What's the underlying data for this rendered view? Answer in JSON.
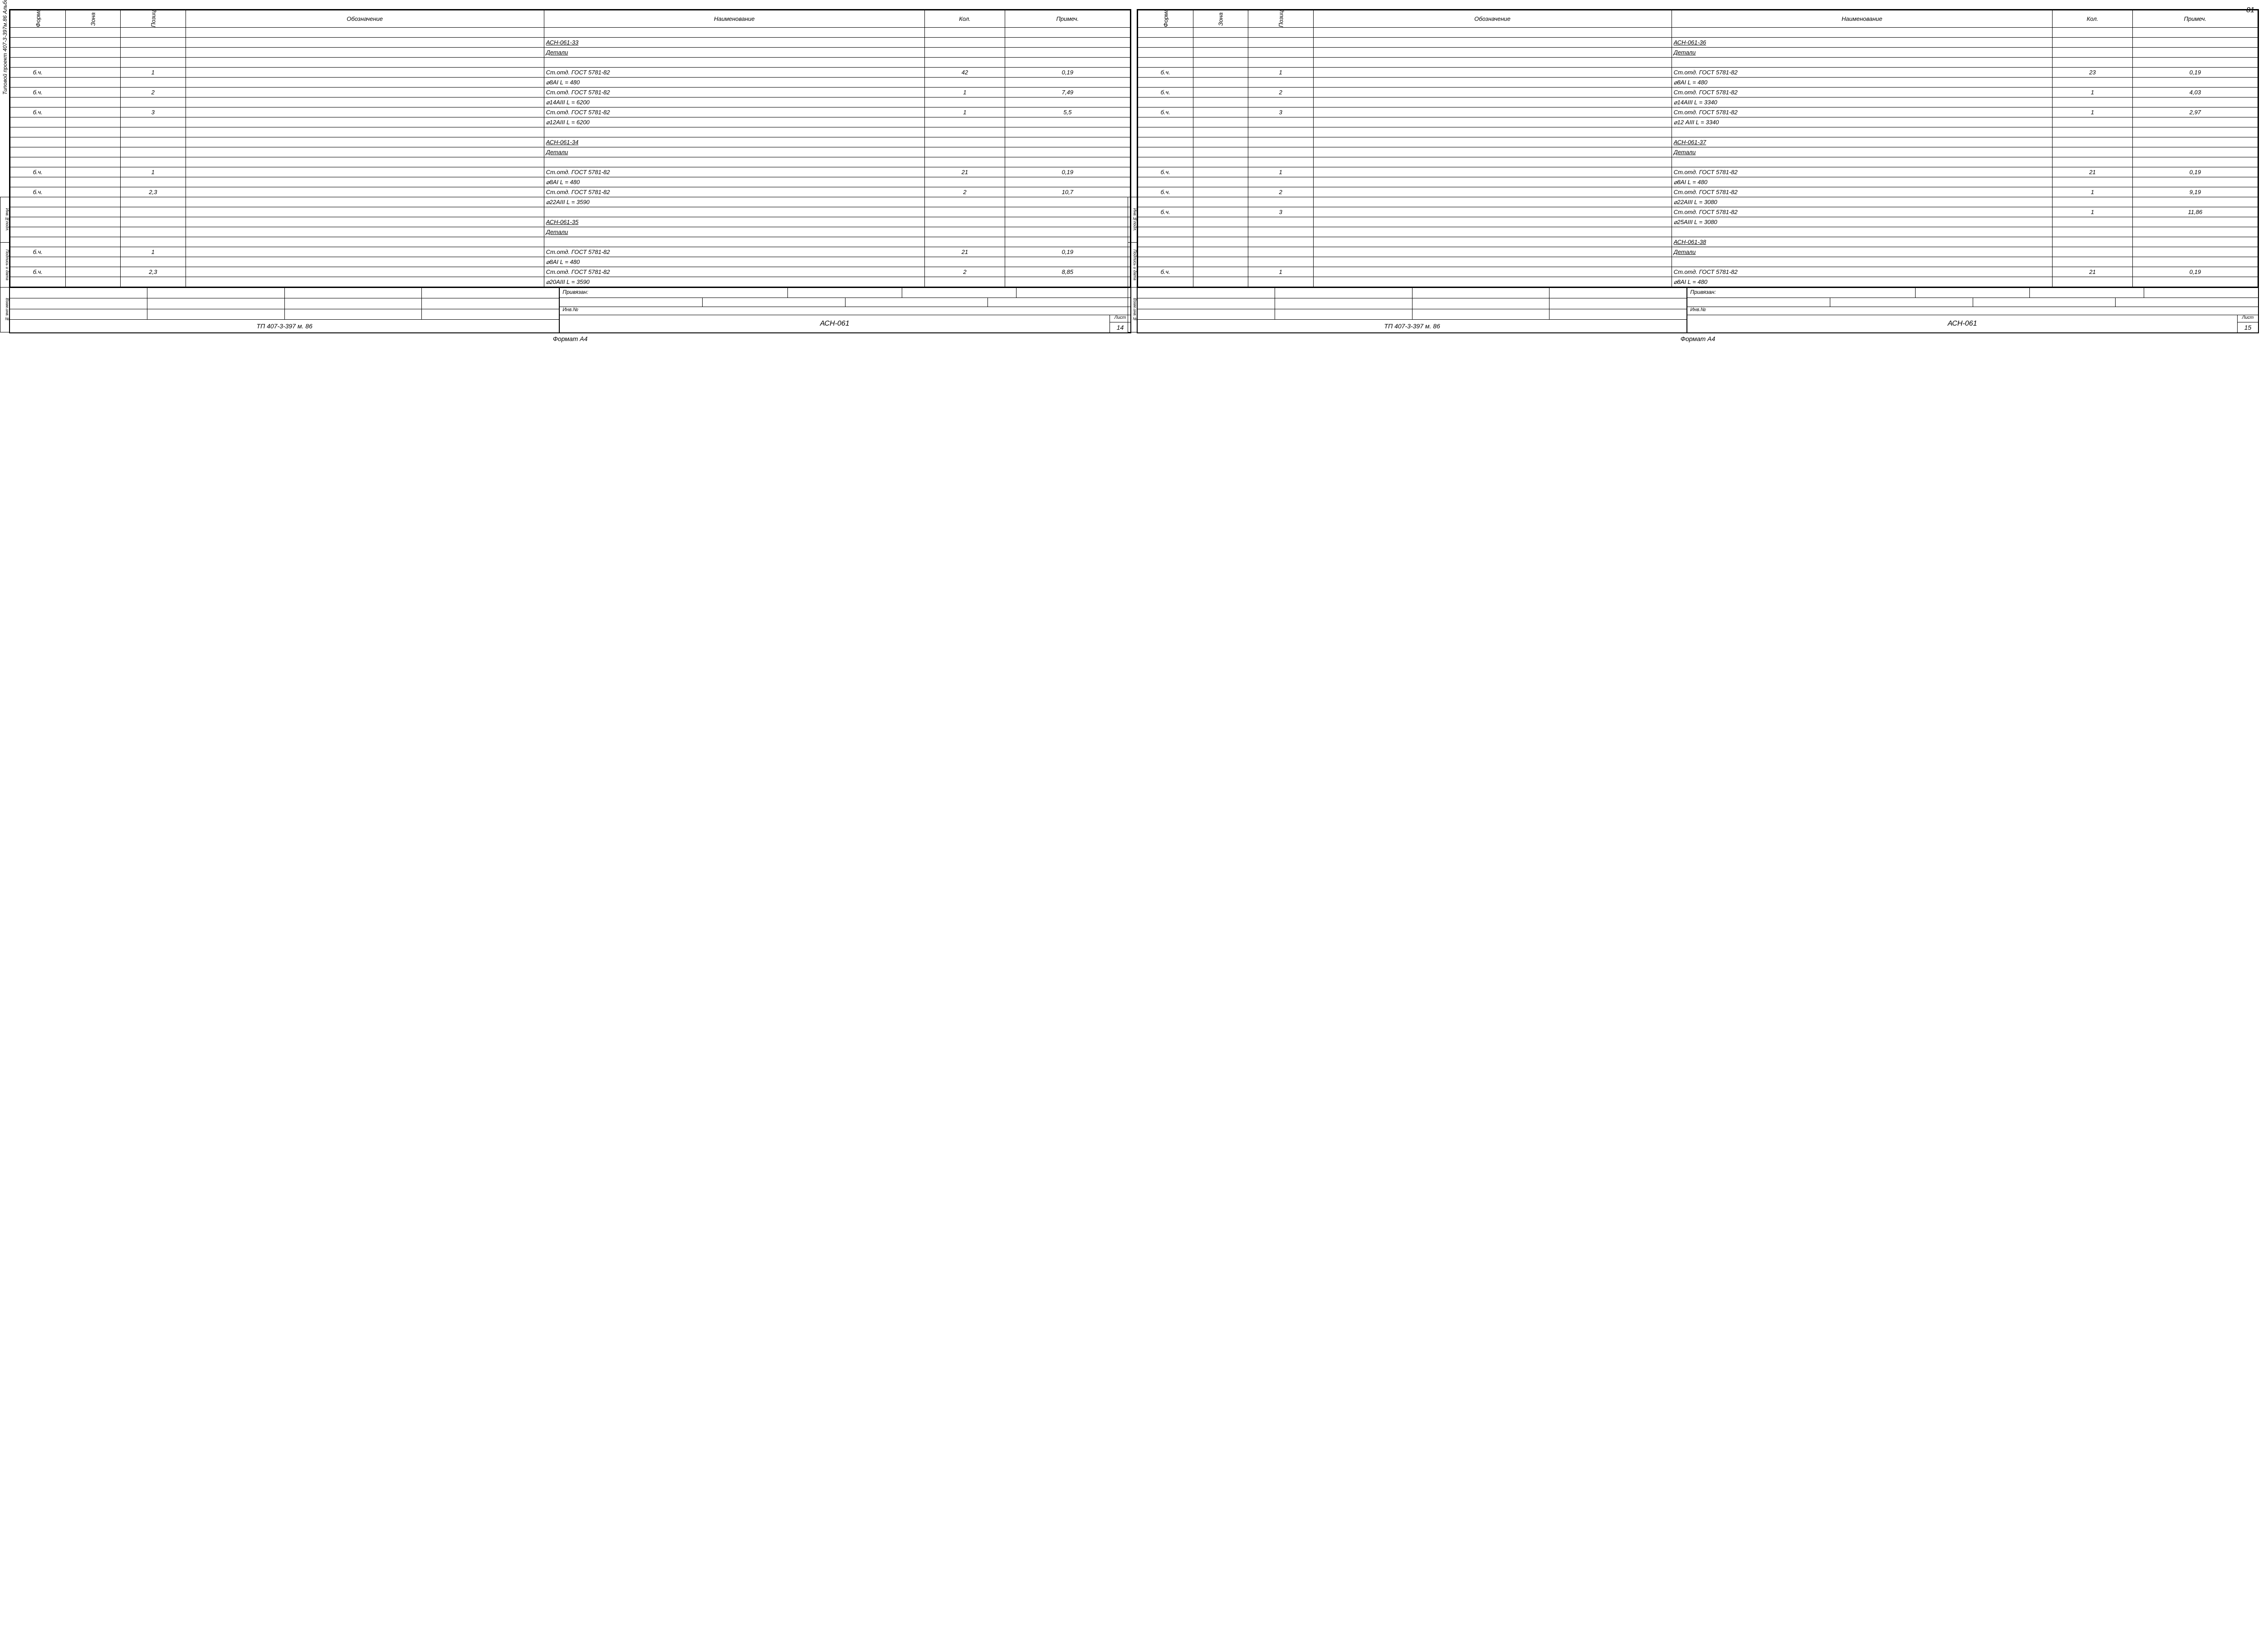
{
  "page_number": "81",
  "side_text_left": "Типовой проект 407-3-397м.86 Альбом IV №10272 тм-III-82",
  "side_labels": [
    "Инв.№подл.",
    "Подпись и дата",
    "Взам.инв.№"
  ],
  "columns": {
    "format": "Формат",
    "zone": "Зона",
    "pos": "Позиция",
    "designation": "Обозначение",
    "name": "Наименование",
    "qty": "Кол.",
    "note": "Примеч."
  },
  "title_block": {
    "privyazan": "Привязан:",
    "inv": "Инв.№",
    "project": "ТП  407-3-397 м. 86",
    "doc_code": "АСН-061",
    "list_label": "Лист"
  },
  "format_footer": "Формат А4",
  "sheets": [
    {
      "sheet_no": "14",
      "rows": [
        {
          "f": "",
          "z": "",
          "p": "",
          "d": "",
          "n": "",
          "q": "",
          "note": ""
        },
        {
          "f": "",
          "z": "",
          "p": "",
          "d": "",
          "n": "АСН-061-33",
          "q": "",
          "note": "",
          "u": true
        },
        {
          "f": "",
          "z": "",
          "p": "",
          "d": "",
          "n": "Детали",
          "q": "",
          "note": "",
          "u": true
        },
        {
          "f": "",
          "z": "",
          "p": "",
          "d": "",
          "n": "",
          "q": "",
          "note": ""
        },
        {
          "f": "б.ч.",
          "z": "",
          "p": "1",
          "d": "",
          "n": "Ст.отд. ГОСТ 5781-82",
          "q": "42",
          "note": "0,19"
        },
        {
          "f": "",
          "z": "",
          "p": "",
          "d": "",
          "n": "⌀8АI  L = 480",
          "q": "",
          "note": ""
        },
        {
          "f": "б.ч.",
          "z": "",
          "p": "2",
          "d": "",
          "n": "Ст.отд. ГОСТ 5781-82",
          "q": "1",
          "note": "7,49"
        },
        {
          "f": "",
          "z": "",
          "p": "",
          "d": "",
          "n": "⌀14АIII  L = 6200",
          "q": "",
          "note": ""
        },
        {
          "f": "б.ч.",
          "z": "",
          "p": "3",
          "d": "",
          "n": "Ст.отд. ГОСТ 5781-82",
          "q": "1",
          "note": "5,5"
        },
        {
          "f": "",
          "z": "",
          "p": "",
          "d": "",
          "n": "⌀12АIII  L = 6200",
          "q": "",
          "note": ""
        },
        {
          "f": "",
          "z": "",
          "p": "",
          "d": "",
          "n": "",
          "q": "",
          "note": ""
        },
        {
          "f": "",
          "z": "",
          "p": "",
          "d": "",
          "n": "АСН-061-34",
          "q": "",
          "note": "",
          "u": true
        },
        {
          "f": "",
          "z": "",
          "p": "",
          "d": "",
          "n": "Детали",
          "q": "",
          "note": "",
          "u": true
        },
        {
          "f": "",
          "z": "",
          "p": "",
          "d": "",
          "n": "",
          "q": "",
          "note": ""
        },
        {
          "f": "б.ч.",
          "z": "",
          "p": "1",
          "d": "",
          "n": "Ст.отд. ГОСТ 5781-82",
          "q": "21",
          "note": "0,19"
        },
        {
          "f": "",
          "z": "",
          "p": "",
          "d": "",
          "n": "⌀8АI  L = 480",
          "q": "",
          "note": ""
        },
        {
          "f": "б.ч.",
          "z": "",
          "p": "2,3",
          "d": "",
          "n": "Ст.отд. ГОСТ 5781-82",
          "q": "2",
          "note": "10,7"
        },
        {
          "f": "",
          "z": "",
          "p": "",
          "d": "",
          "n": "⌀22АIII  L = 3590",
          "q": "",
          "note": ""
        },
        {
          "f": "",
          "z": "",
          "p": "",
          "d": "",
          "n": "",
          "q": "",
          "note": ""
        },
        {
          "f": "",
          "z": "",
          "p": "",
          "d": "",
          "n": "АСН-061-35",
          "q": "",
          "note": "",
          "u": true
        },
        {
          "f": "",
          "z": "",
          "p": "",
          "d": "",
          "n": "Детали",
          "q": "",
          "note": "",
          "u": true
        },
        {
          "f": "",
          "z": "",
          "p": "",
          "d": "",
          "n": "",
          "q": "",
          "note": ""
        },
        {
          "f": "б.ч.",
          "z": "",
          "p": "1",
          "d": "",
          "n": "Ст.отд. ГОСТ 5781-82",
          "q": "21",
          "note": "0,19"
        },
        {
          "f": "",
          "z": "",
          "p": "",
          "d": "",
          "n": "⌀8АI  L = 480",
          "q": "",
          "note": ""
        },
        {
          "f": "б.ч.",
          "z": "",
          "p": "2,3",
          "d": "",
          "n": "Ст.отд. ГОСТ 5781-82",
          "q": "2",
          "note": "8,85"
        },
        {
          "f": "",
          "z": "",
          "p": "",
          "d": "",
          "n": "⌀20АIII  L = 3590",
          "q": "",
          "note": ""
        }
      ]
    },
    {
      "sheet_no": "15",
      "rows": [
        {
          "f": "",
          "z": "",
          "p": "",
          "d": "",
          "n": "",
          "q": "",
          "note": ""
        },
        {
          "f": "",
          "z": "",
          "p": "",
          "d": "",
          "n": "АСН-061-36",
          "q": "",
          "note": "",
          "u": true
        },
        {
          "f": "",
          "z": "",
          "p": "",
          "d": "",
          "n": "Детали",
          "q": "",
          "note": "",
          "u": true
        },
        {
          "f": "",
          "z": "",
          "p": "",
          "d": "",
          "n": "",
          "q": "",
          "note": ""
        },
        {
          "f": "б.ч.",
          "z": "",
          "p": "1",
          "d": "",
          "n": "Ст.отд. ГОСТ 5781-82",
          "q": "23",
          "note": "0,19"
        },
        {
          "f": "",
          "z": "",
          "p": "",
          "d": "",
          "n": "⌀8АI  L = 480",
          "q": "",
          "note": ""
        },
        {
          "f": "б.ч.",
          "z": "",
          "p": "2",
          "d": "",
          "n": "Ст.отд. ГОСТ 5781-82",
          "q": "1",
          "note": "4,03"
        },
        {
          "f": "",
          "z": "",
          "p": "",
          "d": "",
          "n": "⌀14АIII  L = 3340",
          "q": "",
          "note": ""
        },
        {
          "f": "б.ч.",
          "z": "",
          "p": "3",
          "d": "",
          "n": "Ст.отд. ГОСТ 5781-82",
          "q": "1",
          "note": "2,97"
        },
        {
          "f": "",
          "z": "",
          "p": "",
          "d": "",
          "n": "⌀12 АIII  L = 3340",
          "q": "",
          "note": ""
        },
        {
          "f": "",
          "z": "",
          "p": "",
          "d": "",
          "n": "",
          "q": "",
          "note": ""
        },
        {
          "f": "",
          "z": "",
          "p": "",
          "d": "",
          "n": "АСН-061-37",
          "q": "",
          "note": "",
          "u": true
        },
        {
          "f": "",
          "z": "",
          "p": "",
          "d": "",
          "n": "Детали",
          "q": "",
          "note": "",
          "u": true
        },
        {
          "f": "",
          "z": "",
          "p": "",
          "d": "",
          "n": "",
          "q": "",
          "note": ""
        },
        {
          "f": "б.ч.",
          "z": "",
          "p": "1",
          "d": "",
          "n": "Ст.отд. ГОСТ 5781-82",
          "q": "21",
          "note": "0,19"
        },
        {
          "f": "",
          "z": "",
          "p": "",
          "d": "",
          "n": "⌀8АI  L = 480",
          "q": "",
          "note": ""
        },
        {
          "f": "б.ч.",
          "z": "",
          "p": "2",
          "d": "",
          "n": "Ст.отд. ГОСТ 5781-82",
          "q": "1",
          "note": "9,19"
        },
        {
          "f": "",
          "z": "",
          "p": "",
          "d": "",
          "n": "⌀22АIII  L = 3080",
          "q": "",
          "note": ""
        },
        {
          "f": "б.ч.",
          "z": "",
          "p": "3",
          "d": "",
          "n": "Ст.отд. ГОСТ 5781-82",
          "q": "1",
          "note": "11,86"
        },
        {
          "f": "",
          "z": "",
          "p": "",
          "d": "",
          "n": "⌀25АIII  L = 3080",
          "q": "",
          "note": ""
        },
        {
          "f": "",
          "z": "",
          "p": "",
          "d": "",
          "n": "",
          "q": "",
          "note": ""
        },
        {
          "f": "",
          "z": "",
          "p": "",
          "d": "",
          "n": "АСН-061-38",
          "q": "",
          "note": "",
          "u": true
        },
        {
          "f": "",
          "z": "",
          "p": "",
          "d": "",
          "n": "Детали",
          "q": "",
          "note": "",
          "u": true
        },
        {
          "f": "",
          "z": "",
          "p": "",
          "d": "",
          "n": "",
          "q": "",
          "note": ""
        },
        {
          "f": "б.ч.",
          "z": "",
          "p": "1",
          "d": "",
          "n": "Ст.отд. ГОСТ 5781-82",
          "q": "21",
          "note": "0,19"
        },
        {
          "f": "",
          "z": "",
          "p": "",
          "d": "",
          "n": "⌀8АI  L = 480",
          "q": "",
          "note": ""
        }
      ]
    }
  ]
}
